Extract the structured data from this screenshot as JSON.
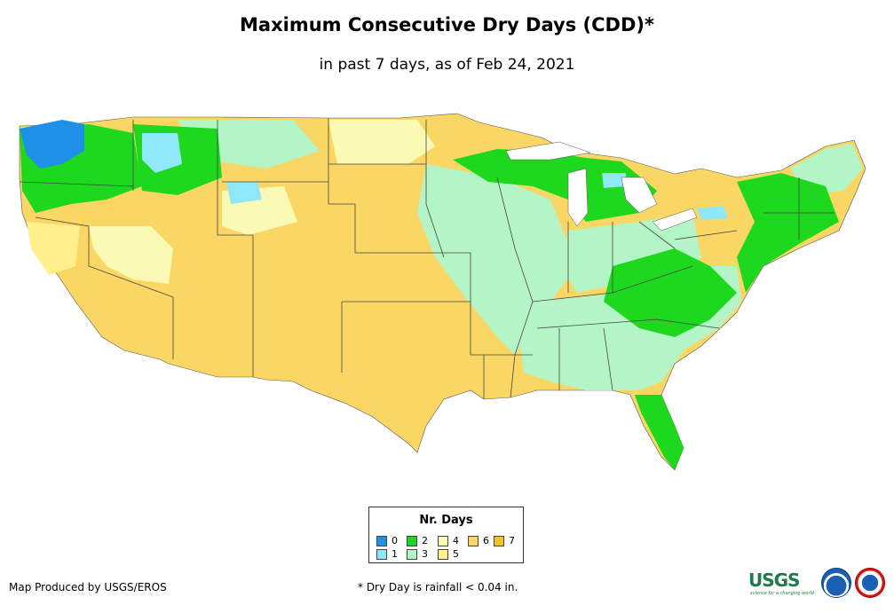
{
  "title": "Maximum Consecutive Dry Days (CDD)*",
  "subtitle": "in past 7 days, as of Feb 24, 2021",
  "legend": {
    "title": "Nr. Days",
    "items": [
      {
        "label": "0",
        "color": "#1e90e8"
      },
      {
        "label": "1",
        "color": "#8ee8f8"
      },
      {
        "label": "2",
        "color": "#1ed81e"
      },
      {
        "label": "3",
        "color": "#b4f5c8"
      },
      {
        "label": "4",
        "color": "#fafab4"
      },
      {
        "label": "5",
        "color": "#fff08c"
      },
      {
        "label": "6",
        "color": "#fad764"
      },
      {
        "label": "7",
        "color": "#f5c31e"
      }
    ]
  },
  "footer": {
    "producer": "Map Produced by USGS/EROS",
    "note": "* Dry Day is rainfall < 0.04 in."
  },
  "logos": {
    "usgs_text": "USGS",
    "usgs_tagline": "science for a changing world",
    "noaa_icon": "noaa-logo",
    "nws_icon": "nws-logo"
  },
  "map_regions": [
    {
      "name": "west-coast-wa",
      "days": 0
    },
    {
      "name": "pacific-northwest",
      "days": 2
    },
    {
      "name": "southwest-plains",
      "days": 6
    },
    {
      "name": "great-basin",
      "days": 4
    },
    {
      "name": "upper-midwest",
      "days": 3
    },
    {
      "name": "great-lakes",
      "days": 2
    },
    {
      "name": "southeast",
      "days": 3
    },
    {
      "name": "northeast",
      "days": 2
    }
  ]
}
